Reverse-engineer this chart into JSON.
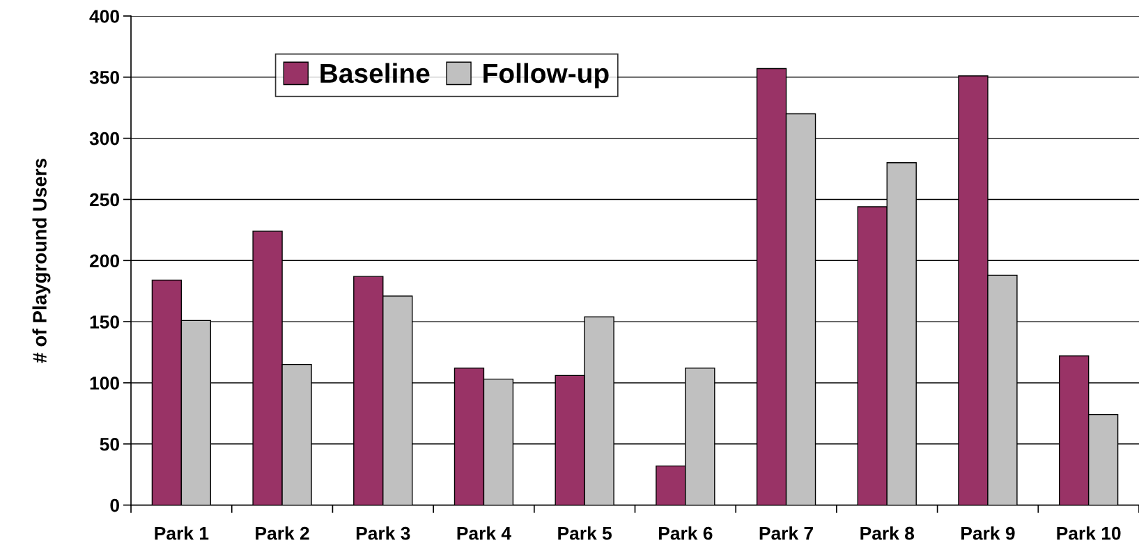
{
  "chart_data": {
    "type": "bar",
    "ylabel": "# of Playground Users",
    "categories": [
      "Park 1",
      "Park 2",
      "Park 3",
      "Park 4",
      "Park 5",
      "Park 6",
      "Park 7",
      "Park 8",
      "Park 9",
      "Park 10"
    ],
    "series": [
      {
        "name": "Baseline",
        "color": "#993366",
        "values": [
          184,
          224,
          187,
          112,
          106,
          32,
          357,
          244,
          351,
          122
        ]
      },
      {
        "name": "Follow-up",
        "color": "#c0c0c0",
        "values": [
          151,
          115,
          171,
          103,
          154,
          112,
          320,
          280,
          188,
          74
        ]
      }
    ],
    "ylim": [
      0,
      400
    ],
    "yticks": [
      0,
      50,
      100,
      150,
      200,
      250,
      300,
      350,
      400
    ],
    "grid": "y",
    "legend": "top left"
  }
}
